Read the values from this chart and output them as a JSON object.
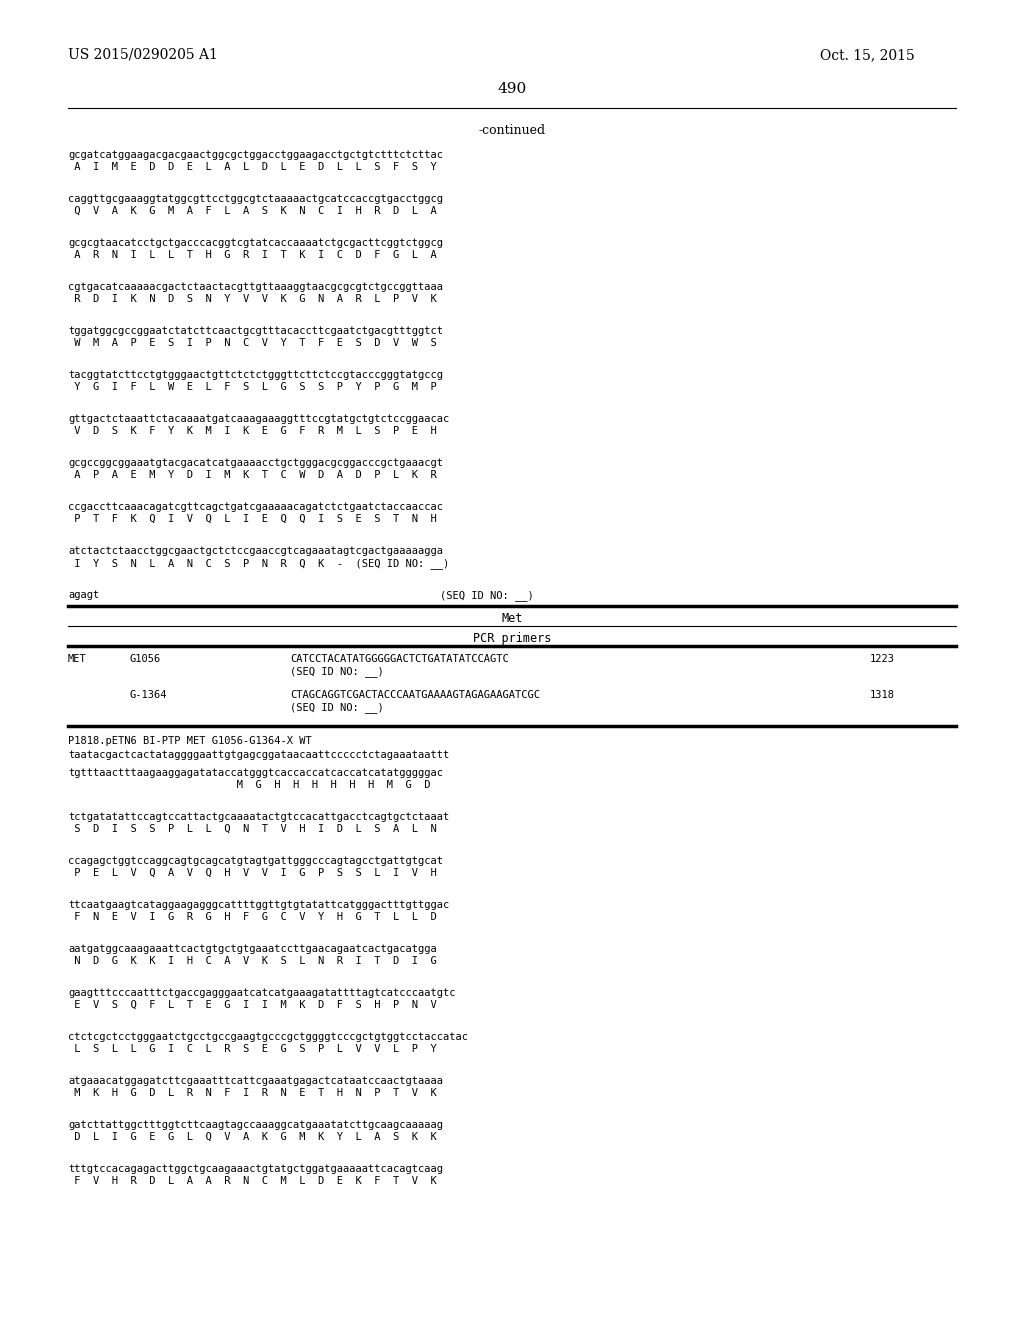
{
  "patent_number": "US 2015/0290205 A1",
  "date": "Oct. 15, 2015",
  "page_number": "490",
  "continued": "-continued",
  "background_color": "#ffffff",
  "text_color": "#000000",
  "top_sequences": [
    {
      "dna": "gcgatcatggaagacgacgaactggcgctggacctggaagacctgctgtctttctcttac",
      "protein": " A  I  M  E  D  D  E  L  A  L  D  L  E  D  L  L  S  F  S  Y"
    },
    {
      "dna": "caggttgcgaaaggtatggcgttcctggcgtctaaaaactgcatccaccgtgacctggcg",
      "protein": " Q  V  A  K  G  M  A  F  L  A  S  K  N  C  I  H  R  D  L  A"
    },
    {
      "dna": "gcgcgtaacatcctgctgacccacggtcgtatcaccaaaatctgcgacttcggtctggcg",
      "protein": " A  R  N  I  L  L  T  H  G  R  I  T  K  I  C  D  F  G  L  A"
    },
    {
      "dna": "cgtgacatcaaaaacgactctaactacgttgttaaaggtaacgcgcgtctgccggttaaa",
      "protein": " R  D  I  K  N  D  S  N  Y  V  V  K  G  N  A  R  L  P  V  K"
    },
    {
      "dna": "tggatggcgccggaatctatcttcaactgcgtttacaccttcgaatctgacgtttggtct",
      "protein": " W  M  A  P  E  S  I  P  N  C  V  Y  T  F  E  S  D  V  W  S"
    },
    {
      "dna": "tacggtatcttcctgtgggaactgttctctctgggttcttctccgtacccgggtatgccg",
      "protein": " Y  G  I  F  L  W  E  L  F  S  L  G  S  S  P  Y  P  G  M  P"
    },
    {
      "dna": "gttgactctaaattctacaaaatgatcaaagaaaggtttccgtatgctgtctccggaacac",
      "protein": " V  D  S  K  F  Y  K  M  I  K  E  G  F  R  M  L  S  P  E  H"
    },
    {
      "dna": "gcgccggcggaaatgtacgacatcatgaaaacctgctgggacgcggacccgctgaaacgt",
      "protein": " A  P  A  E  M  Y  D  I  M  K  T  C  W  D  A  D  P  L  K  R"
    },
    {
      "dna": "ccgaccttcaaacagatcgttcagctgatcgaaaaacagatctctgaatctaccaaccac",
      "protein": " P  T  F  K  Q  I  V  Q  L  I  E  Q  Q  I  S  E  S  T  N  H"
    },
    {
      "dna": "atctactctaacctggcgaactgctctccgaaccgtcagaaatagtcgactgaaaaagga",
      "protein": " I  Y  S  N  L  A  N  C  S  P  N  R  Q  K  -  (SEQ ID NO: __)"
    }
  ],
  "agagt_line_left": "agagt",
  "agagt_line_right": "(SEQ ID NO: __)",
  "met_label": "Met",
  "pcr_label": "PCR primers",
  "pcr_rows": [
    {
      "col1": "MET",
      "col2": "G1056",
      "col3": "CATCCTACATATGGGGGACTCTGATATATCCAGTC",
      "col3b": "(SEQ ID NO: __)",
      "col4": "1223"
    },
    {
      "col1": "",
      "col2": "G-1364",
      "col3": "CTAGCAGGTCGACTACCCAATGAAAAGTAGAGAAGATCGC",
      "col3b": "(SEQ ID NO: __)",
      "col4": "1318"
    }
  ],
  "p1818_header": "P1818.pETN6 BI-PTP MET G1056-G1364-X WT",
  "p1818_seq1": "taatacgactcactataggggaattgtgagcggataacaattccccctctagaaataattt",
  "p1818_blocks": [
    {
      "dna": "tgtttaactttaagaaggagatataccatgggtcaccaccatcaccatcatatgggggac",
      "protein": "                           M  G  H  H  H  H  H  H  M  G  D"
    },
    {
      "dna": "tctgatatattccagtccattactgcaaaatactgtccacattgacctcagtgctctaaat",
      "protein": " S  D  I  S  S  P  L  L  Q  N  T  V  H  I  D  L  S  A  L  N"
    },
    {
      "dna": "ccagagctggtccaggcagtgcagcatgtagtgattgggcccagtagcctgattgtgcat",
      "protein": " P  E  L  V  Q  A  V  Q  H  V  V  I  G  P  S  S  L  I  V  H"
    },
    {
      "dna": "ttcaatgaagtcataggaagagggcattttggttgtgtatattcatgggactttgttggac",
      "protein": " F  N  E  V  I  G  R  G  H  F  G  C  V  Y  H  G  T  L  L  D"
    },
    {
      "dna": "aatgatggcaaagaaattcactgtgctgtgaaatccttgaacagaatcactgacatgga",
      "protein": " N  D  G  K  K  I  H  C  A  V  K  S  L  N  R  I  T  D  I  G"
    },
    {
      "dna": "gaagtttcccaatttctgaccgagggaatcatcatgaaagatattttagtcatcccaatgtc",
      "protein": " E  V  S  Q  F  L  T  E  G  I  I  M  K  D  F  S  H  P  N  V"
    },
    {
      "dna": "ctctcgctcctgggaatctgcctgccgaagtgcccgctggggtcccgctgtggtcctaccatac",
      "protein": " L  S  L  L  G  I  C  L  R  S  E  G  S  P  L  V  V  L  P  Y"
    },
    {
      "dna": "atgaaacatggagatcttcgaaatttcattcgaaatgagactcataatccaactgtaaaa",
      "protein": " M  K  H  G  D  L  R  N  F  I  R  N  E  T  H  N  P  T  V  K"
    },
    {
      "dna": "gatcttattggctttggtcttcaagtagccaaaggcatgaaatatcttgcaagcaaaaag",
      "protein": " D  L  I  G  E  G  L  Q  V  A  K  G  M  K  Y  L  A  S  K  K"
    },
    {
      "dna": "tttgtccacagagacttggctgcaagaaactgtatgctggatgaaaaattcacagtcaag",
      "protein": " F  V  H  R  D  L  A  A  R  N  C  M  L  D  E  K  F  T  V  K"
    }
  ]
}
